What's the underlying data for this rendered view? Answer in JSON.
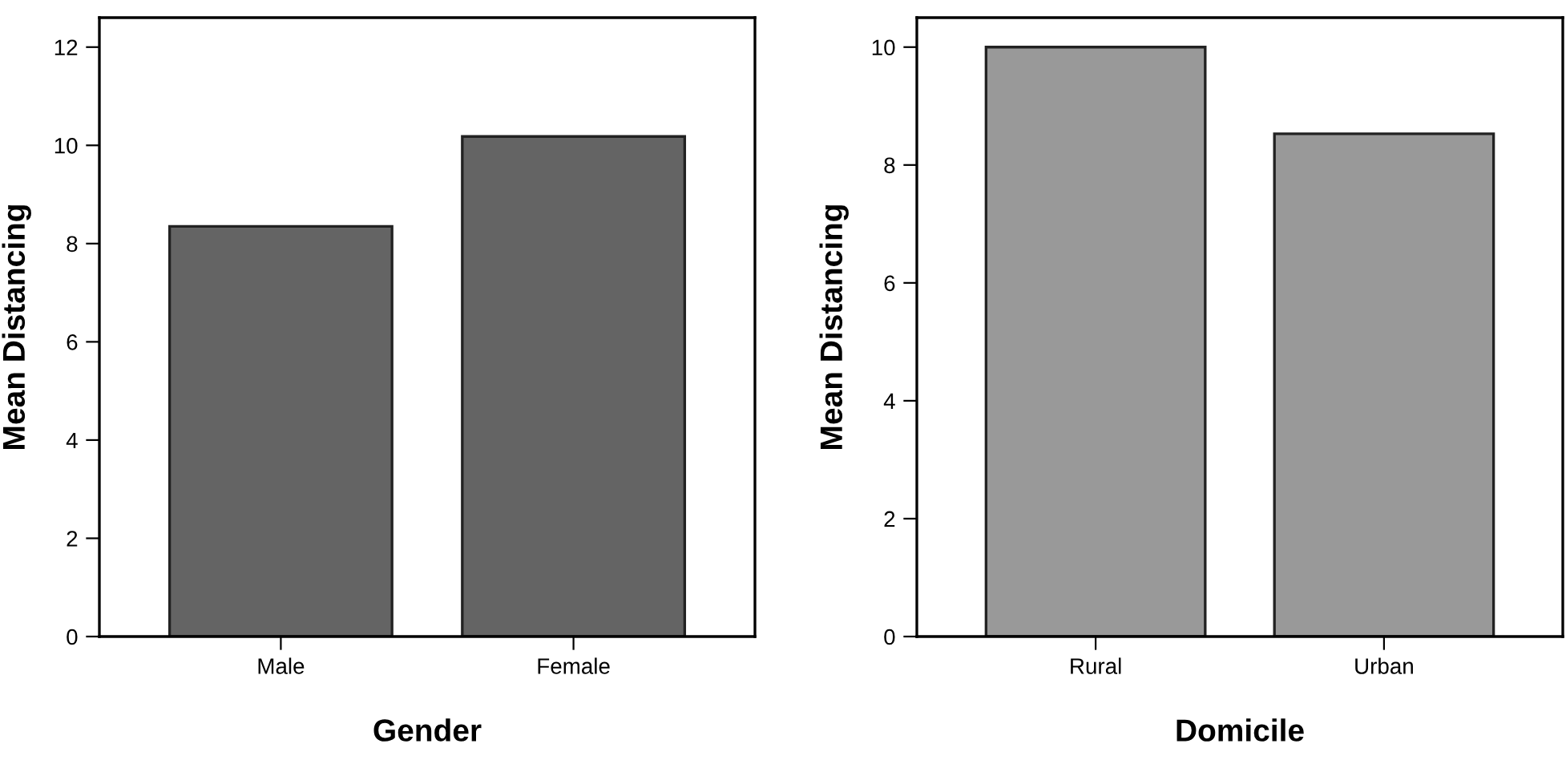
{
  "chart_data": [
    {
      "type": "bar",
      "xlabel": "Gender",
      "ylabel": "Mean Distancing",
      "categories": [
        "Male",
        "Female"
      ],
      "values": [
        8.35,
        10.18
      ],
      "color": "#646464",
      "ylim": [
        0,
        12.6
      ],
      "yticks": [
        0,
        2,
        4,
        6,
        8,
        10,
        12
      ],
      "grid": false
    },
    {
      "type": "bar",
      "xlabel": "Domicile",
      "ylabel": "Mean Distancing",
      "categories": [
        "Rural",
        "Urban"
      ],
      "values": [
        10.0,
        8.53
      ],
      "color": "#999999",
      "ylim": [
        0,
        10.5
      ],
      "yticks": [
        0,
        2,
        4,
        6,
        8,
        10
      ],
      "grid": false
    }
  ]
}
